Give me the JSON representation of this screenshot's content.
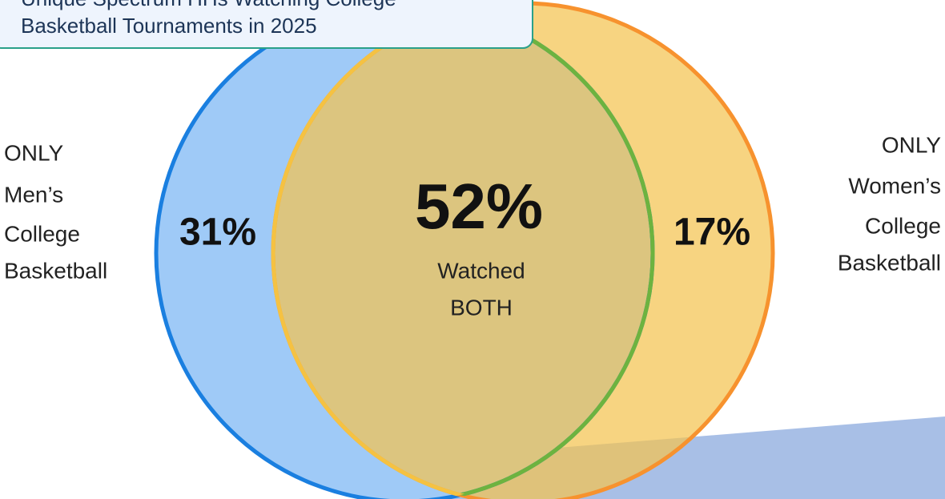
{
  "title": {
    "lines": [
      "Unique Spectrum HHs Watching College",
      "Basketball Tournaments in 2025"
    ]
  },
  "left": {
    "label_lines": [
      "ONLY",
      "Men’s",
      "College",
      "Basketball"
    ],
    "value": "31%"
  },
  "center": {
    "value": "52%",
    "label_lines": [
      "Watched",
      "BOTH"
    ]
  },
  "right": {
    "label_lines": [
      "ONLY",
      "Women’s",
      "College",
      "Basketball"
    ],
    "value": "17%"
  }
}
